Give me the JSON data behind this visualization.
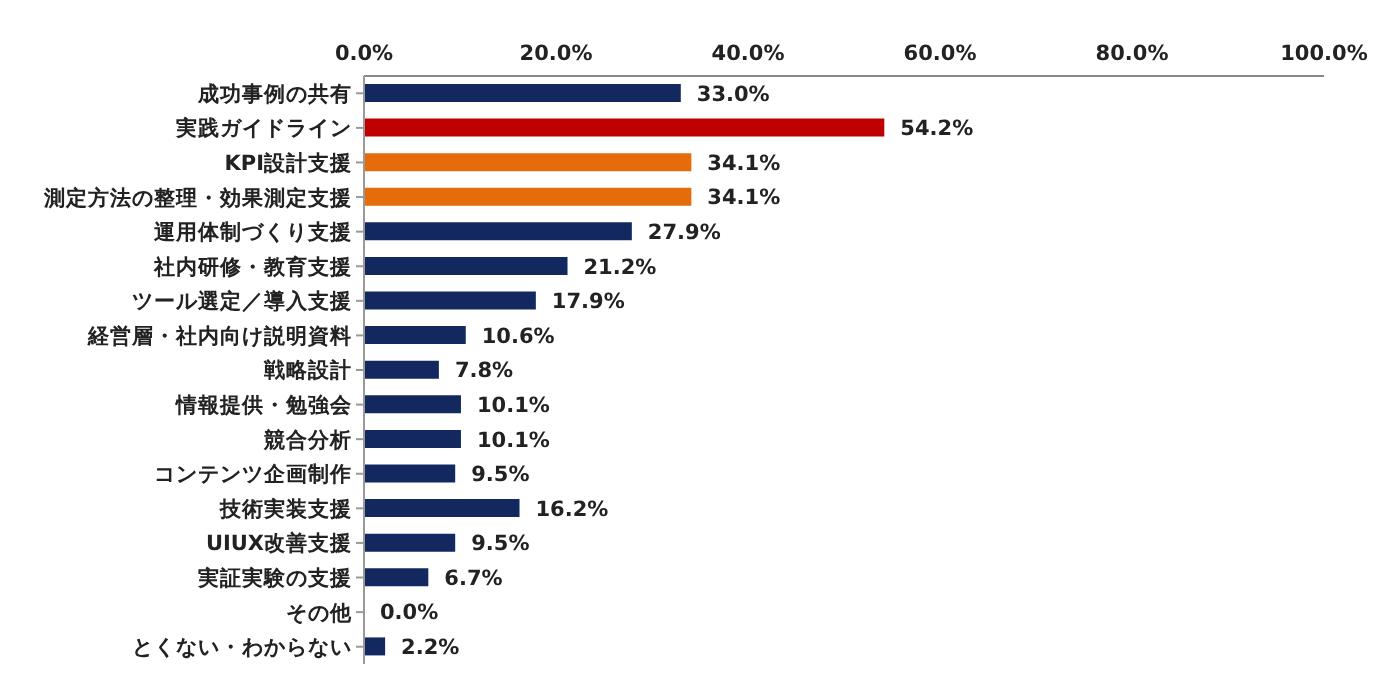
{
  "chart_data": {
    "type": "bar",
    "orientation": "horizontal",
    "categories": [
      "成功事例の共有",
      "実践ガイドライン",
      "KPI設計支援",
      "測定方法の整理・効果測定支援",
      "運用体制づくり支援",
      "社内研修・教育支援",
      "ツール選定／導入支援",
      "経営層・社内向け説明資料",
      "戦略設計",
      "情報提供・勉強会",
      "競合分析",
      "コンテンツ企画制作",
      "技術実装支援",
      "UIUX改善支援",
      "実証実験の支援",
      "その他",
      "とくない・わからない"
    ],
    "values": [
      33.0,
      54.2,
      34.1,
      34.1,
      27.9,
      21.2,
      17.9,
      10.6,
      7.8,
      10.1,
      10.1,
      9.5,
      16.2,
      9.5,
      6.7,
      0.0,
      2.2
    ],
    "colors": [
      "#13285e",
      "#c00000",
      "#e46c0a",
      "#e46c0a",
      "#13285e",
      "#13285e",
      "#13285e",
      "#13285e",
      "#13285e",
      "#13285e",
      "#13285e",
      "#13285e",
      "#13285e",
      "#13285e",
      "#13285e",
      "#13285e",
      "#13285e"
    ],
    "value_labels": [
      "33.0%",
      "54.2%",
      "34.1%",
      "34.1%",
      "27.9%",
      "21.2%",
      "17.9%",
      "10.6%",
      "7.8%",
      "10.1%",
      "10.1%",
      "9.5%",
      "16.2%",
      "9.5%",
      "6.7%",
      "0.0%",
      "2.2%"
    ],
    "xlim": [
      0,
      100
    ],
    "xticks": [
      {
        "value": 0,
        "label": "0.0%"
      },
      {
        "value": 20,
        "label": "20.0%"
      },
      {
        "value": 40,
        "label": "40.0%"
      },
      {
        "value": 60,
        "label": "60.0%"
      },
      {
        "value": 80,
        "label": "80.0%"
      },
      {
        "value": 100,
        "label": "100.0%"
      }
    ],
    "grid": false,
    "legend": false
  }
}
